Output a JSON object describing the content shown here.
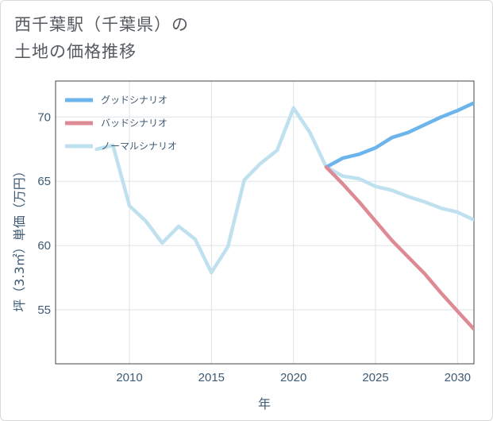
{
  "title_line1": "西千葉駅（千葉県）の",
  "title_line2": "土地の価格推移",
  "chart_data": {
    "type": "line",
    "xlabel": "年",
    "ylabel": "坪（3.3㎡）単価（万円）",
    "xlim": [
      2005.5,
      2031
    ],
    "ylim": [
      50.8,
      72.8
    ],
    "xticks": [
      2010,
      2015,
      2020,
      2025,
      2030
    ],
    "yticks": [
      55,
      60,
      65,
      70
    ],
    "grid": true,
    "legend_position": "top-left",
    "series": [
      {
        "name": "グッドシナリオ",
        "color": "#6cb4ec",
        "x": [
          2022,
          2023,
          2024,
          2025,
          2026,
          2027,
          2028,
          2029,
          2030,
          2031
        ],
        "values": [
          66.1,
          66.8,
          67.1,
          67.6,
          68.4,
          68.8,
          69.4,
          70.0,
          70.5,
          71.1
        ]
      },
      {
        "name": "バッドシナリオ",
        "color": "#dd8a94",
        "x": [
          2022,
          2023,
          2024,
          2025,
          2026,
          2027,
          2028,
          2029,
          2030,
          2031
        ],
        "values": [
          66.1,
          64.8,
          63.4,
          61.9,
          60.4,
          59.1,
          57.8,
          56.3,
          54.9,
          53.5
        ]
      },
      {
        "name": "ノーマルシナリオ",
        "color": "#bfe0ee",
        "x": [
          2008,
          2009,
          2010,
          2011,
          2012,
          2013,
          2014,
          2015,
          2016,
          2017,
          2018,
          2019,
          2020,
          2021,
          2022,
          2023,
          2024,
          2025,
          2026,
          2027,
          2028,
          2029,
          2030,
          2031
        ],
        "values": [
          67.5,
          67.8,
          63.1,
          61.9,
          60.2,
          61.5,
          60.5,
          57.9,
          59.9,
          65.1,
          66.4,
          67.4,
          70.7,
          68.8,
          66.1,
          65.4,
          65.2,
          64.6,
          64.3,
          63.8,
          63.4,
          62.9,
          62.6,
          62.0
        ]
      }
    ]
  }
}
